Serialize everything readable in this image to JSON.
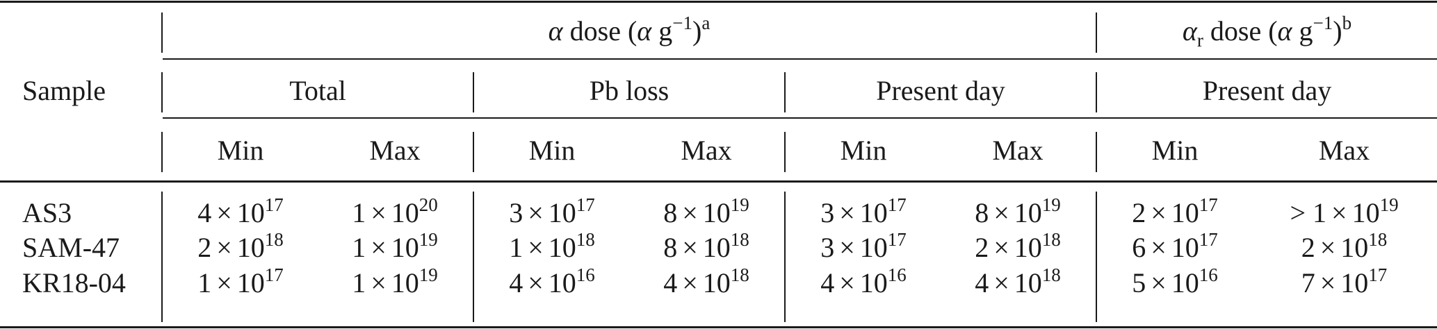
{
  "header": {
    "sample_label": "Sample",
    "alpha_dose": {
      "symbol": "α",
      "text": " dose (",
      "paren_symbol": "α",
      "unit": " g",
      "exp": "−1",
      "close": ")",
      "note": "a"
    },
    "alphar_dose": {
      "symbol": "α",
      "subscript": "r",
      "text": " dose (",
      "paren_symbol": "α",
      "unit": " g",
      "exp": "−1",
      "close": ")",
      "note": "b"
    },
    "groups": [
      "Total",
      "Pb loss",
      "Present day",
      "Present day"
    ],
    "minmax": [
      "Min",
      "Max",
      "Min",
      "Max",
      "Min",
      "Max",
      "Min",
      "Max"
    ]
  },
  "rows": [
    {
      "sample": "AS3",
      "values": [
        {
          "prefix": "",
          "coef": "4",
          "exp": "17"
        },
        {
          "prefix": "",
          "coef": "1",
          "exp": "20"
        },
        {
          "prefix": "",
          "coef": "3",
          "exp": "17"
        },
        {
          "prefix": "",
          "coef": "8",
          "exp": "19"
        },
        {
          "prefix": "",
          "coef": "3",
          "exp": "17"
        },
        {
          "prefix": "",
          "coef": "8",
          "exp": "19"
        },
        {
          "prefix": "",
          "coef": "2",
          "exp": "17"
        },
        {
          "prefix": "> ",
          "coef": "1",
          "exp": "19"
        }
      ]
    },
    {
      "sample": "SAM-47",
      "values": [
        {
          "prefix": "",
          "coef": "2",
          "exp": "18"
        },
        {
          "prefix": "",
          "coef": "1",
          "exp": "19"
        },
        {
          "prefix": "",
          "coef": "1",
          "exp": "18"
        },
        {
          "prefix": "",
          "coef": "8",
          "exp": "18"
        },
        {
          "prefix": "",
          "coef": "3",
          "exp": "17"
        },
        {
          "prefix": "",
          "coef": "2",
          "exp": "18"
        },
        {
          "prefix": "",
          "coef": "6",
          "exp": "17"
        },
        {
          "prefix": "",
          "coef": "2",
          "exp": "18"
        }
      ]
    },
    {
      "sample": "KR18-04",
      "values": [
        {
          "prefix": "",
          "coef": "1",
          "exp": "17"
        },
        {
          "prefix": "",
          "coef": "1",
          "exp": "19"
        },
        {
          "prefix": "",
          "coef": "4",
          "exp": "16"
        },
        {
          "prefix": "",
          "coef": "4",
          "exp": "18"
        },
        {
          "prefix": "",
          "coef": "4",
          "exp": "16"
        },
        {
          "prefix": "",
          "coef": "4",
          "exp": "18"
        },
        {
          "prefix": "",
          "coef": "5",
          "exp": "16"
        },
        {
          "prefix": "",
          "coef": "7",
          "exp": "17"
        }
      ]
    }
  ],
  "times_sign": "×",
  "base": "10"
}
